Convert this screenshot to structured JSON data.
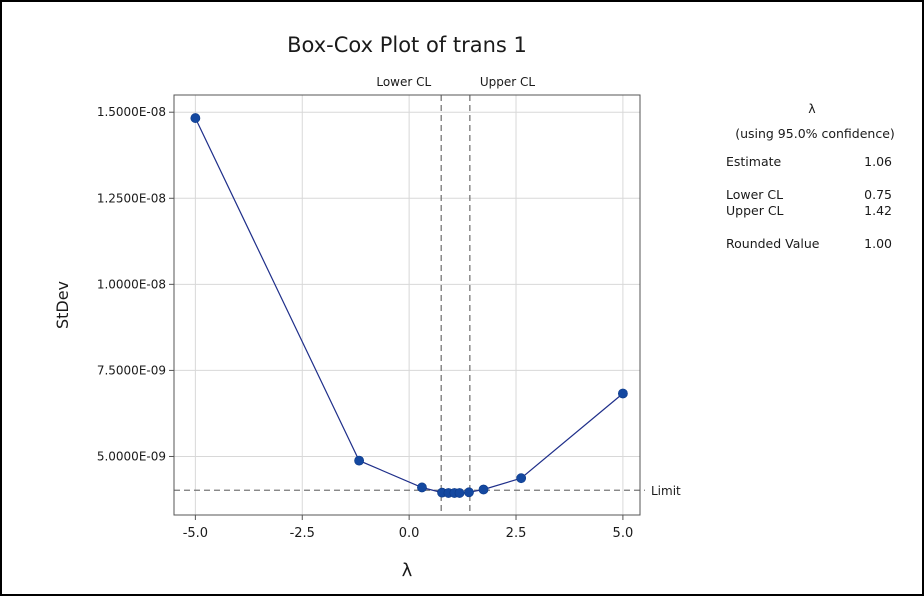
{
  "chart_data": {
    "type": "line",
    "title": "Box-Cox Plot of trans 1",
    "xlabel": "λ",
    "ylabel": "StDev",
    "xlim": [
      -5.5,
      5.4
    ],
    "ylim": [
      3.3e-09,
      1.55e-08
    ],
    "x_ticks": [
      -5,
      -2.5,
      0,
      2.5,
      5
    ],
    "x_tick_labels": [
      "-5.0",
      "-2.5",
      "0.0",
      "2.5",
      "5.0"
    ],
    "y_ticks": [
      5e-09,
      7.5e-09,
      1e-08,
      1.25e-08,
      1.5e-08
    ],
    "y_tick_labels": [
      "5.0000E-09",
      "7.5000E-09",
      "1.0000E-08",
      "1.2500E-08",
      "1.5000E-08"
    ],
    "grid": true,
    "x": [
      -5.0,
      -1.17,
      0.3,
      0.77,
      0.92,
      1.06,
      1.18,
      1.4,
      1.74,
      2.62,
      5.0
    ],
    "y": [
      1.483e-08,
      4.88e-09,
      4.1e-09,
      3.95e-09,
      3.94e-09,
      3.94e-09,
      3.94e-09,
      3.96e-09,
      4.04e-09,
      4.37e-09,
      6.83e-09
    ],
    "lower_cl": 0.75,
    "upper_cl": 1.42,
    "limit": 4.02e-09,
    "lower_cl_label": "Lower CL",
    "upper_cl_label": "Upper CL",
    "limit_label": "Limit",
    "colors": {
      "line": "#1f2f8a",
      "marker": "#1448a0",
      "ref": "#777777",
      "grid": "#d8d8d8"
    }
  },
  "stats": {
    "lambda_symbol": "λ",
    "confidence_label": "(using 95.0% confidence)",
    "estimate_label": "Estimate",
    "estimate_value": "1.06",
    "lower_cl_label": "Lower CL",
    "lower_cl_value": "0.75",
    "upper_cl_label": "Upper CL",
    "upper_cl_value": "1.42",
    "rounded_label": "Rounded Value",
    "rounded_value": "1.00"
  }
}
